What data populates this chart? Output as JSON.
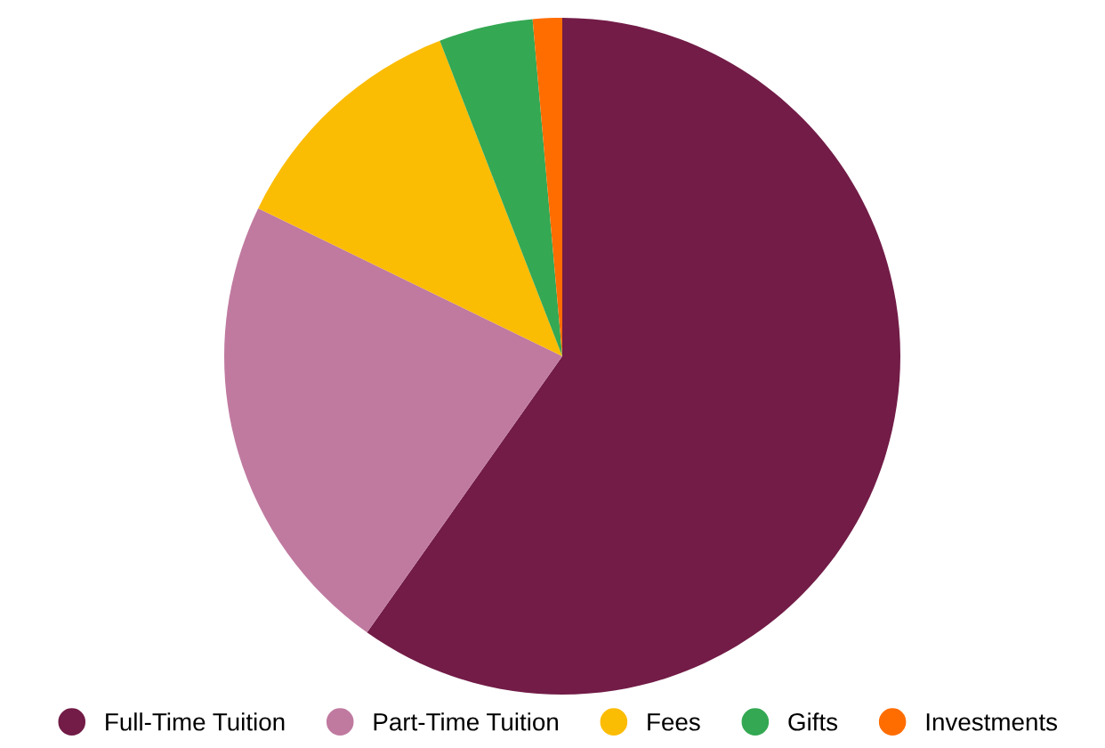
{
  "chart_data": {
    "type": "pie",
    "categories": [
      "Full-Time Tuition",
      "Part-Time Tuition",
      "Fees",
      "Gifts",
      "Investments"
    ],
    "values": [
      59.8,
      22.4,
      11.9,
      4.5,
      1.4
    ],
    "colors": [
      "#721c47",
      "#c07aa0",
      "#fbbc04",
      "#34a853",
      "#ff6d01"
    ],
    "legend": "bottom"
  }
}
